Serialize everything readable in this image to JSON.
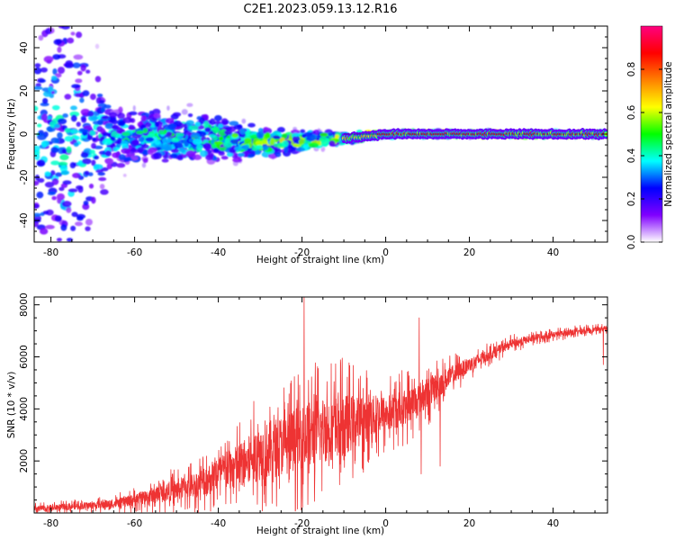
{
  "figure_title": "C2E1.2023.059.13.12.R16",
  "chart_data": [
    {
      "type": "heatmap",
      "xlabel": "Height of straight line (km)",
      "ylabel": "Frequency (Hz)",
      "xlim": [
        -84,
        53
      ],
      "ylim": [
        -50,
        50
      ],
      "x_ticks": [
        -80,
        -60,
        -40,
        -20,
        0,
        20,
        40
      ],
      "y_ticks": [
        -40,
        -20,
        0,
        20,
        40
      ],
      "colorbar": {
        "label": "Normalized spectral amplitude",
        "range": [
          0,
          1
        ],
        "ticks": [
          0.0,
          0.2,
          0.4,
          0.6,
          0.8
        ],
        "colormap": [
          "#ffffff",
          "#8000ff",
          "#0000ff",
          "#00ffff",
          "#00ff00",
          "#ffff00",
          "#ff8000",
          "#ff0000",
          "#ff0080"
        ]
      },
      "ridge_profile": [
        {
          "x": -84,
          "y": -3,
          "spread": 50,
          "amp": 0.35
        },
        {
          "x": -75,
          "y": -3,
          "spread": 50,
          "amp": 0.35
        },
        {
          "x": -65,
          "y": -2,
          "spread": 12,
          "amp": 0.35
        },
        {
          "x": -55,
          "y": -1,
          "spread": 10,
          "amp": 0.4
        },
        {
          "x": -40,
          "y": -2,
          "spread": 9,
          "amp": 0.45
        },
        {
          "x": -30,
          "y": -4,
          "spread": 6,
          "amp": 0.5
        },
        {
          "x": -20,
          "y": -3,
          "spread": 4,
          "amp": 0.55
        },
        {
          "x": -10,
          "y": -2,
          "spread": 2,
          "amp": 0.65
        },
        {
          "x": 0,
          "y": 0,
          "spread": 1,
          "amp": 0.9
        },
        {
          "x": 20,
          "y": 0,
          "spread": 1,
          "amp": 0.9
        },
        {
          "x": 53,
          "y": 0,
          "spread": 1,
          "amp": 0.9
        }
      ]
    },
    {
      "type": "line",
      "xlabel": "Height of straight line (km)",
      "ylabel": "SNR (10 * v/v)",
      "xlim": [
        -84,
        53
      ],
      "ylim": [
        0,
        8300
      ],
      "x_ticks": [
        -80,
        -60,
        -40,
        -20,
        0,
        20,
        40
      ],
      "y_ticks": [
        2000,
        4000,
        6000,
        8000
      ],
      "color": "#ee3333",
      "series": [
        {
          "x": [
            -84,
            -80,
            -75,
            -70,
            -65,
            -60,
            -55,
            -50,
            -45,
            -40,
            -35,
            -30,
            -25,
            -20,
            -15,
            -10,
            -5,
            0,
            5,
            10,
            15,
            20,
            25,
            30,
            35,
            40,
            45,
            50,
            53
          ],
          "values": [
            150,
            200,
            250,
            300,
            350,
            500,
            700,
            900,
            1100,
            1500,
            1800,
            2300,
            2600,
            2900,
            3200,
            3400,
            3600,
            3800,
            4100,
            4600,
            5200,
            5700,
            6100,
            6500,
            6700,
            6850,
            6950,
            7050,
            7100
          ],
          "noise": [
            250,
            250,
            250,
            300,
            350,
            500,
            700,
            900,
            1100,
            1500,
            1900,
            2300,
            2600,
            2800,
            2900,
            2600,
            2000,
            1600,
            1500,
            1300,
            900,
            600,
            450,
            350,
            300,
            250,
            250,
            200,
            200
          ]
        }
      ],
      "peaks": [
        {
          "x": -19.5,
          "y": 8300
        },
        {
          "x": 8,
          "y": 7500
        },
        {
          "x": 8.5,
          "y": 1500
        },
        {
          "x": 13,
          "y": 1800
        },
        {
          "x": 52,
          "y": 5700
        }
      ]
    }
  ]
}
